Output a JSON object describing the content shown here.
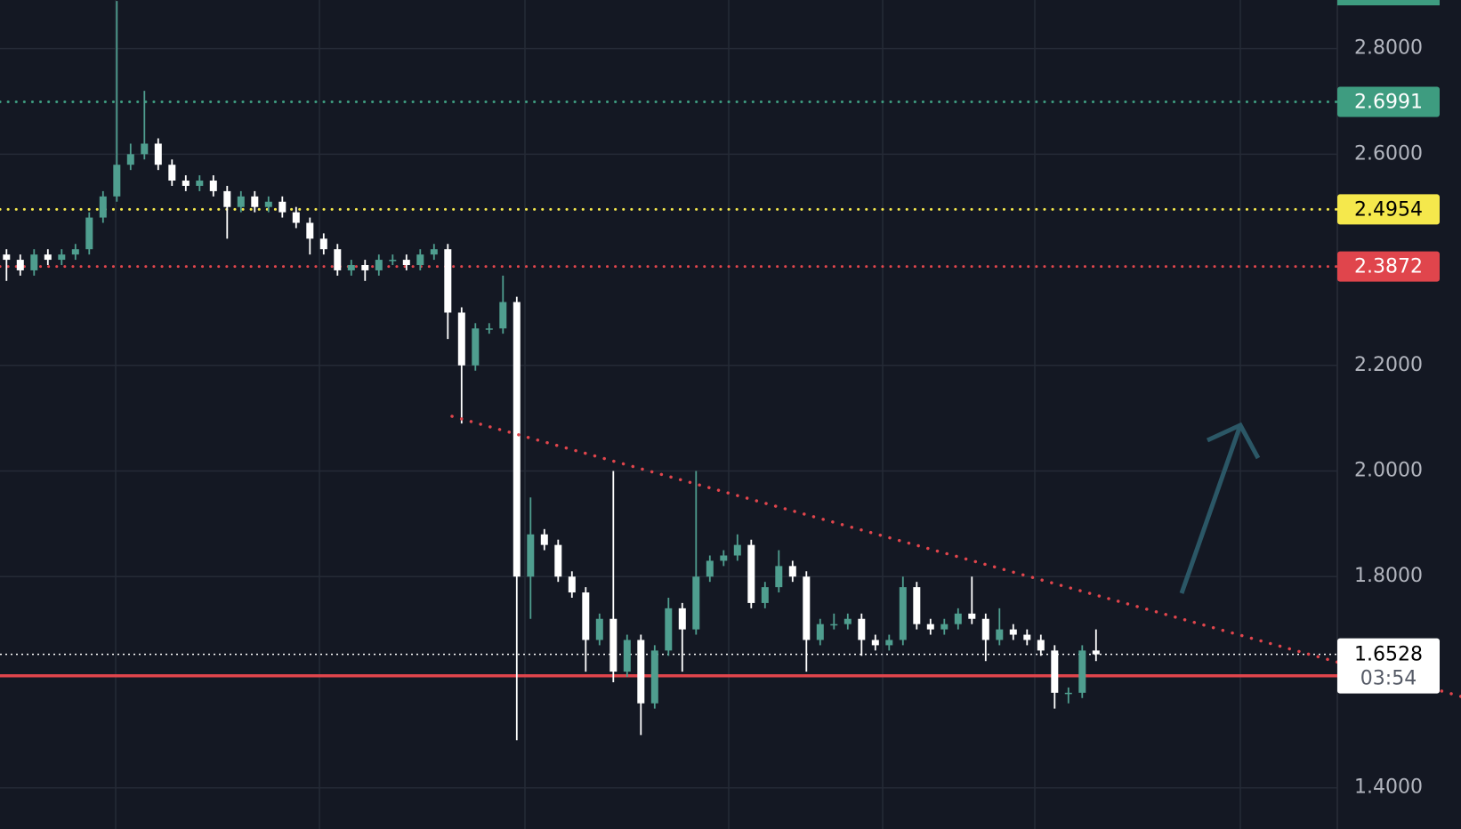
{
  "chart_data": {
    "type": "candlestick",
    "background": "#141823",
    "up_color": "#4f9e8f",
    "down_color": "#ffffff",
    "grid": true,
    "ylim": [
      1.322,
      2.892
    ],
    "yticks": [
      {
        "value": 1.4,
        "label": "1.4000"
      },
      {
        "value": 1.8,
        "label": "1.8000"
      },
      {
        "value": 2.0,
        "label": "2.0000"
      },
      {
        "value": 2.2,
        "label": "2.2000"
      },
      {
        "value": 2.6,
        "label": "2.6000"
      },
      {
        "value": 2.8,
        "label": "2.8000"
      }
    ],
    "open": [
      2.41,
      2.4,
      2.38,
      2.41,
      2.4,
      2.41,
      2.42,
      2.48,
      2.52,
      2.58,
      2.6,
      2.62,
      2.58,
      2.55,
      2.54,
      2.55,
      2.53,
      2.5,
      2.52,
      2.5,
      2.51,
      2.49,
      2.47,
      2.44,
      2.42,
      2.38,
      2.39,
      2.38,
      2.4,
      2.4,
      2.39,
      2.41,
      2.42,
      2.3,
      2.2,
      2.27,
      2.27,
      2.32,
      1.8,
      1.88,
      1.86,
      1.8,
      1.77,
      1.68,
      1.72,
      1.62,
      1.68,
      1.56,
      1.66,
      1.74,
      1.7,
      1.8,
      1.83,
      1.84,
      1.86,
      1.75,
      1.78,
      1.82,
      1.8,
      1.68,
      1.71,
      1.71,
      1.72,
      1.68,
      1.67,
      1.68,
      1.78,
      1.71,
      1.7,
      1.71,
      1.73,
      1.72,
      1.68,
      1.7,
      1.69,
      1.68,
      1.66,
      1.58,
      1.58,
      1.66
    ],
    "high": [
      2.42,
      2.41,
      2.42,
      2.42,
      2.42,
      2.43,
      2.49,
      2.53,
      2.89,
      2.62,
      2.72,
      2.63,
      2.59,
      2.56,
      2.56,
      2.56,
      2.54,
      2.53,
      2.53,
      2.52,
      2.52,
      2.5,
      2.48,
      2.45,
      2.43,
      2.4,
      2.4,
      2.41,
      2.41,
      2.41,
      2.42,
      2.43,
      2.43,
      2.31,
      2.28,
      2.28,
      2.37,
      2.33,
      1.95,
      1.89,
      1.87,
      1.81,
      1.78,
      1.73,
      2.0,
      1.69,
      1.69,
      1.67,
      1.76,
      1.75,
      2.0,
      1.84,
      1.85,
      1.88,
      1.87,
      1.79,
      1.85,
      1.83,
      1.81,
      1.72,
      1.73,
      1.73,
      1.73,
      1.69,
      1.69,
      1.8,
      1.79,
      1.72,
      1.72,
      1.74,
      1.8,
      1.73,
      1.74,
      1.71,
      1.7,
      1.69,
      1.67,
      1.59,
      1.67,
      1.7
    ],
    "low": [
      2.36,
      2.37,
      2.37,
      2.39,
      2.39,
      2.4,
      2.41,
      2.47,
      2.51,
      2.57,
      2.59,
      2.57,
      2.54,
      2.53,
      2.53,
      2.52,
      2.44,
      2.49,
      2.49,
      2.49,
      2.48,
      2.46,
      2.41,
      2.41,
      2.37,
      2.37,
      2.36,
      2.37,
      2.39,
      2.38,
      2.38,
      2.4,
      2.25,
      2.09,
      2.19,
      2.26,
      2.26,
      1.49,
      1.72,
      1.85,
      1.79,
      1.76,
      1.62,
      1.67,
      1.6,
      1.61,
      1.5,
      1.55,
      1.65,
      1.62,
      1.69,
      1.79,
      1.82,
      1.83,
      1.74,
      1.74,
      1.77,
      1.79,
      1.62,
      1.67,
      1.7,
      1.7,
      1.65,
      1.66,
      1.66,
      1.67,
      1.7,
      1.69,
      1.69,
      1.7,
      1.71,
      1.64,
      1.67,
      1.68,
      1.67,
      1.65,
      1.55,
      1.56,
      1.57,
      1.64
    ],
    "close": [
      2.4,
      2.38,
      2.41,
      2.4,
      2.41,
      2.42,
      2.48,
      2.52,
      2.58,
      2.6,
      2.62,
      2.58,
      2.55,
      2.54,
      2.55,
      2.53,
      2.5,
      2.52,
      2.5,
      2.51,
      2.49,
      2.47,
      2.44,
      2.42,
      2.38,
      2.39,
      2.38,
      2.4,
      2.4,
      2.39,
      2.41,
      2.42,
      2.3,
      2.2,
      2.27,
      2.27,
      2.32,
      1.8,
      1.88,
      1.86,
      1.8,
      1.77,
      1.68,
      1.72,
      1.62,
      1.68,
      1.56,
      1.66,
      1.74,
      1.7,
      1.8,
      1.83,
      1.84,
      1.86,
      1.75,
      1.78,
      1.82,
      1.8,
      1.68,
      1.71,
      1.71,
      1.72,
      1.68,
      1.67,
      1.68,
      1.78,
      1.71,
      1.7,
      1.71,
      1.73,
      1.72,
      1.68,
      1.7,
      1.69,
      1.68,
      1.66,
      1.58,
      1.58,
      1.66,
      1.6528
    ],
    "levels": [
      {
        "value": 2.6991,
        "color": "#3e9c80",
        "text_color": "#ffffff",
        "dash": "dotted"
      },
      {
        "value": 2.4954,
        "color": "#f5e84c",
        "text_color": "#000000",
        "dash": "dotted"
      },
      {
        "value": 2.3872,
        "color": "#e0454c",
        "text_color": "#ffffff",
        "dash": "dotted"
      },
      {
        "value": 1.6121,
        "color": "#e0454c",
        "text_color": "#ffffff",
        "dash": "solid"
      }
    ],
    "current_price": {
      "value": 1.6528,
      "countdown": "03:54",
      "color": "#ffffff",
      "text_color": "#000000"
    }
  }
}
